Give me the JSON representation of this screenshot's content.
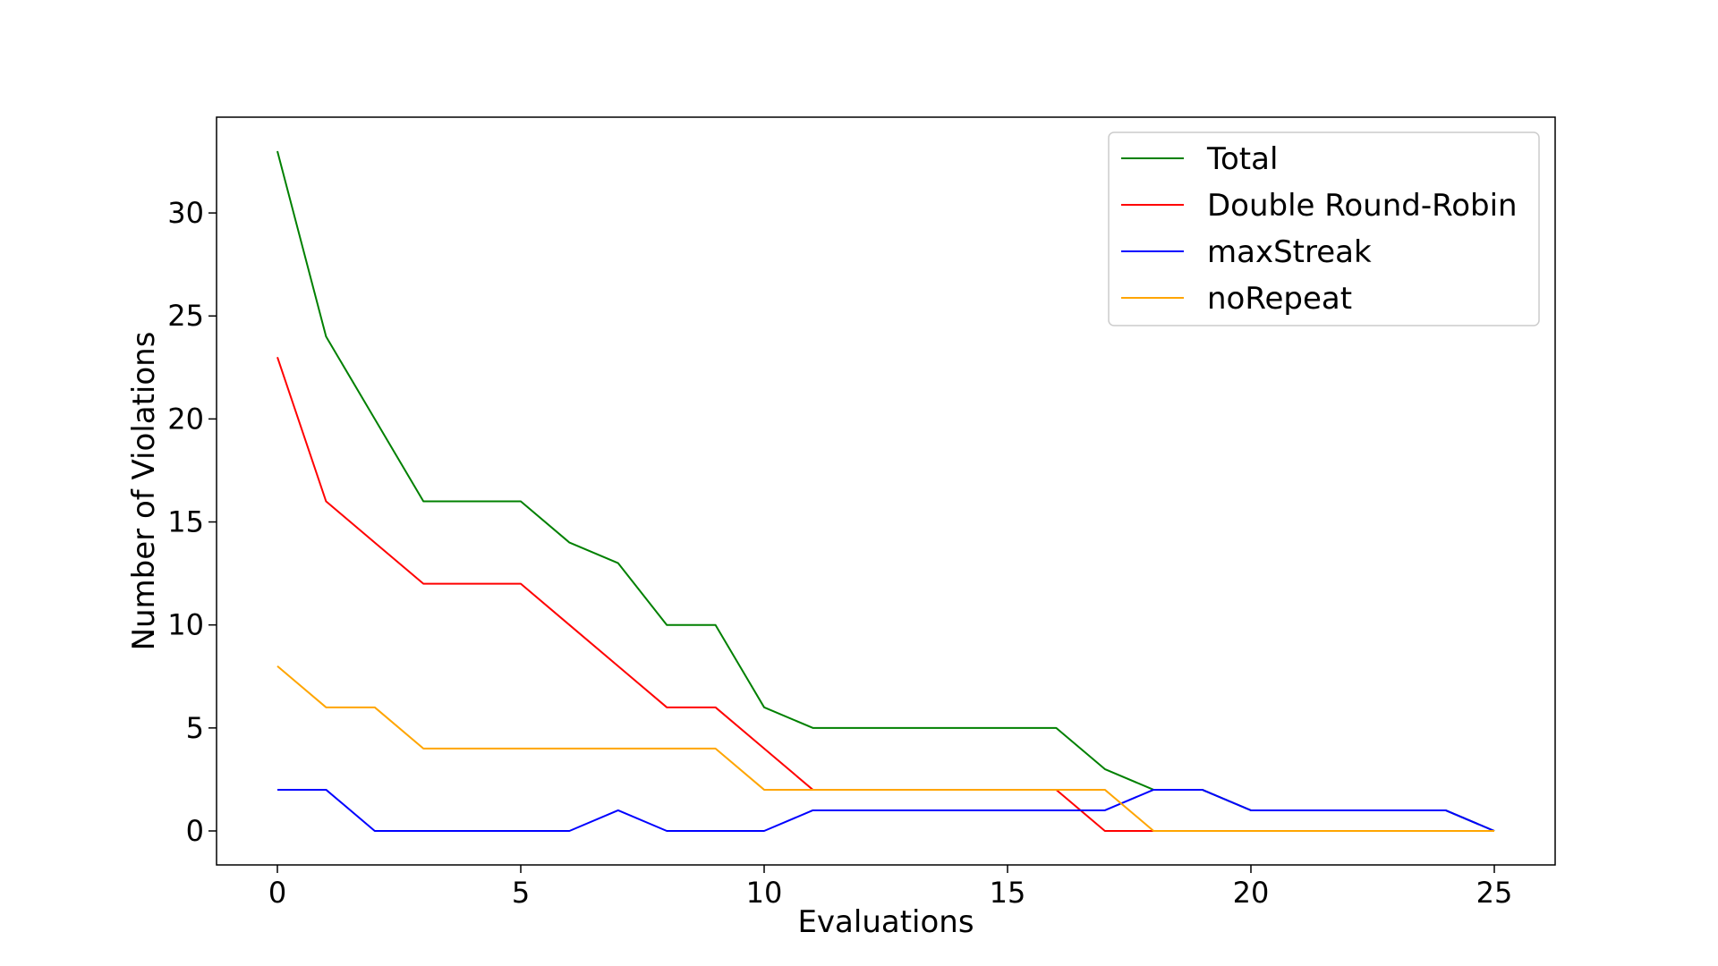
{
  "chart_data": {
    "type": "line",
    "title": "",
    "xlabel": "Evaluations",
    "ylabel": "Number of Violations",
    "xlim": [
      -1.25,
      26.25
    ],
    "ylim": [
      -1.65,
      34.65
    ],
    "xticks": [
      0,
      5,
      10,
      15,
      20,
      25
    ],
    "yticks": [
      0,
      5,
      10,
      15,
      20,
      25,
      30
    ],
    "grid": false,
    "legend_position": "top-right",
    "x": [
      0,
      1,
      2,
      3,
      4,
      5,
      6,
      7,
      8,
      9,
      10,
      11,
      12,
      13,
      14,
      15,
      16,
      17,
      18,
      19,
      20,
      21,
      22,
      23,
      24,
      25
    ],
    "series": [
      {
        "name": "Total",
        "color": "#008000",
        "values": [
          33,
          24,
          20,
          16,
          16,
          16,
          14,
          13,
          10,
          10,
          6,
          5,
          5,
          5,
          5,
          5,
          5,
          3,
          2,
          2,
          1,
          1,
          1,
          1,
          1,
          0
        ]
      },
      {
        "name": "Double Round-Robin",
        "color": "#ff0000",
        "values": [
          23,
          16,
          14,
          12,
          12,
          12,
          10,
          8,
          6,
          6,
          4,
          2,
          2,
          2,
          2,
          2,
          2,
          0,
          0,
          0,
          0,
          0,
          0,
          0,
          0,
          0
        ]
      },
      {
        "name": "maxStreak",
        "color": "#0000ff",
        "values": [
          2,
          2,
          0,
          0,
          0,
          0,
          0,
          1,
          0,
          0,
          0,
          1,
          1,
          1,
          1,
          1,
          1,
          1,
          2,
          2,
          1,
          1,
          1,
          1,
          1,
          0
        ]
      },
      {
        "name": "noRepeat",
        "color": "#ffa500",
        "values": [
          8,
          6,
          6,
          4,
          4,
          4,
          4,
          4,
          4,
          4,
          2,
          2,
          2,
          2,
          2,
          2,
          2,
          2,
          0,
          0,
          0,
          0,
          0,
          0,
          0,
          0
        ]
      }
    ]
  }
}
